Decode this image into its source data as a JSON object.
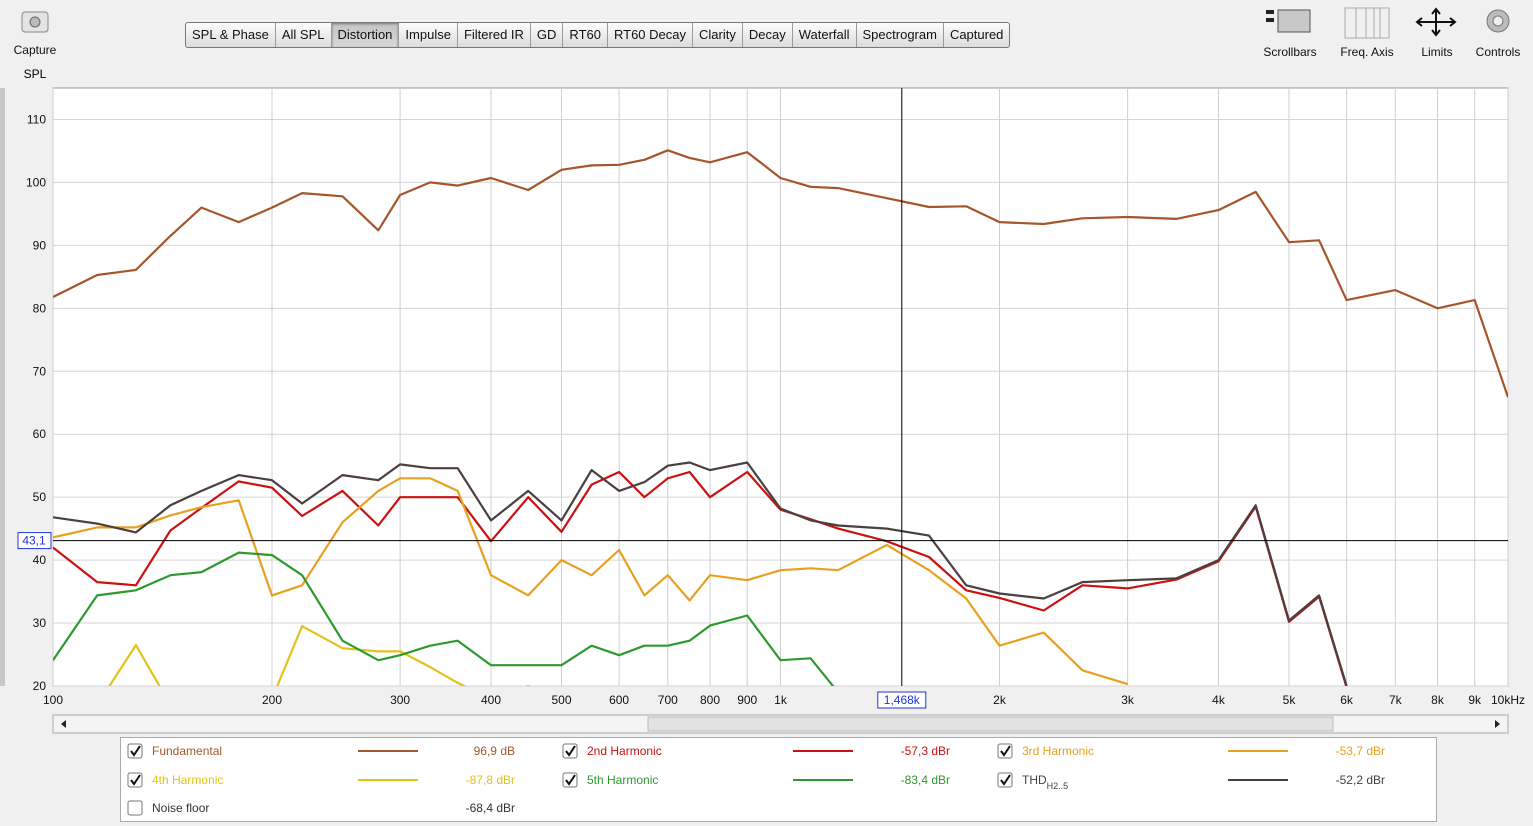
{
  "toolbar": {
    "capture": "Capture",
    "buttons": [
      "SPL & Phase",
      "All SPL",
      "Distortion",
      "Impulse",
      "Filtered IR",
      "GD",
      "RT60",
      "RT60 Decay",
      "Clarity",
      "Decay",
      "Waterfall",
      "Spectrogram",
      "Captured"
    ],
    "active_index": 2,
    "tools": [
      "Scrollbars",
      "Freq. Axis",
      "Limits",
      "Controls"
    ]
  },
  "chart_data": {
    "type": "line",
    "y_label": "SPL",
    "xscale": "log",
    "grid": true,
    "xlim": [
      100,
      10000
    ],
    "ylim": [
      20,
      115
    ],
    "xticks": [
      100,
      200,
      300,
      400,
      500,
      600,
      700,
      800,
      900,
      {
        "value": 1000,
        "label": "1k"
      },
      {
        "value": 2000,
        "label": "2k"
      },
      {
        "value": 3000,
        "label": "3k"
      },
      {
        "value": 4000,
        "label": "4k"
      },
      {
        "value": 5000,
        "label": "5k"
      },
      {
        "value": 6000,
        "label": "6k"
      },
      {
        "value": 7000,
        "label": "7k"
      },
      {
        "value": 8000,
        "label": "8k"
      },
      {
        "value": 9000,
        "label": "9k"
      },
      {
        "value": 10000,
        "label": "10kHz"
      }
    ],
    "yticks": [
      20,
      30,
      40,
      50,
      60,
      70,
      80,
      90,
      100,
      110
    ],
    "cursor": {
      "x": {
        "value": 1468,
        "label": "1,468k"
      },
      "y": {
        "value": 43.1,
        "label": "43,1"
      }
    },
    "x": [
      100,
      115,
      130,
      145,
      160,
      180,
      200,
      220,
      250,
      280,
      300,
      330,
      360,
      400,
      450,
      500,
      550,
      600,
      650,
      700,
      750,
      800,
      900,
      1000,
      1100,
      1200,
      1400,
      1600,
      1800,
      2000,
      2300,
      2600,
      3000,
      3500,
      4000,
      4500,
      5000,
      5500,
      6000,
      7000,
      8000,
      9000,
      10000
    ],
    "series": [
      {
        "name": "Fundamental",
        "color": "#a5562a",
        "checked": true,
        "readout": "96,9 dB",
        "values": [
          81.8,
          85.3,
          86.1,
          91.5,
          96,
          93.7,
          96,
          98.3,
          97.8,
          92.4,
          98,
          100,
          99.5,
          100.7,
          98.8,
          102,
          102.7,
          102.8,
          103.6,
          105.1,
          103.9,
          103.2,
          104.8,
          100.7,
          99.3,
          99.1,
          97.5,
          96.1,
          96.2,
          93.7,
          93.4,
          94.3,
          94.5,
          94.2,
          95.6,
          98.5,
          90.5,
          90.8,
          81.3,
          82.9,
          80,
          81.3,
          65.9
        ]
      },
      {
        "name": "2nd Harmonic",
        "color": "#cc1111",
        "checked": true,
        "readout": "-57,3 dBr",
        "values": [
          42,
          36.5,
          36,
          44.7,
          48.3,
          52.5,
          51.5,
          47,
          51,
          45.5,
          50,
          50,
          50,
          43,
          50,
          44.5,
          52,
          54,
          50,
          53,
          54,
          50,
          54,
          48,
          46.5,
          45,
          43,
          40.5,
          35.2,
          34,
          32,
          36,
          35.5,
          36.9,
          39.8,
          48.5,
          30.2,
          34.2,
          19.8,
          null,
          null,
          null,
          null
        ]
      },
      {
        "name": "3rd Harmonic",
        "color": "#e8a020",
        "checked": true,
        "readout": "-53,7 dBr",
        "values": [
          43.6,
          45.2,
          45.2,
          47.1,
          48.4,
          49.5,
          34.4,
          36,
          46,
          51,
          53,
          53,
          51,
          37.6,
          34.4,
          40,
          37.6,
          41.6,
          34.4,
          37.6,
          33.6,
          37.6,
          36.8,
          38.4,
          38.7,
          38.4,
          42.4,
          38.4,
          33.9,
          26.4,
          28.5,
          22.5,
          20.3,
          null,
          null,
          null,
          null,
          null,
          null,
          null,
          null,
          null,
          null
        ]
      },
      {
        "name": "4th Harmonic",
        "color": "#e3c21a",
        "checked": true,
        "readout": "-87,8 dBr",
        "values": [
          null,
          17,
          26.5,
          17,
          18,
          15,
          18,
          29.5,
          26,
          25.5,
          25.5,
          23,
          20.5,
          18,
          20,
          18,
          null,
          null,
          null,
          null,
          null,
          null,
          null,
          null,
          null,
          null,
          null,
          null,
          null,
          null,
          null,
          null,
          null,
          null,
          null,
          null,
          null,
          null,
          null,
          null,
          null,
          null,
          null
        ]
      },
      {
        "name": "5th Harmonic",
        "color": "#2e9a2e",
        "checked": true,
        "readout": "-83,4 dBr",
        "values": [
          24.1,
          34.4,
          35.2,
          37.6,
          38.1,
          41.2,
          40.8,
          37.6,
          27.2,
          24.1,
          24.9,
          26.4,
          27.2,
          23.3,
          23.3,
          23.3,
          26.4,
          24.9,
          26.4,
          26.4,
          27.2,
          29.6,
          31.2,
          24.1,
          24.4,
          19,
          null,
          null,
          null,
          null,
          null,
          null,
          null,
          null,
          null,
          null,
          null,
          null,
          null,
          null,
          null,
          null,
          null
        ]
      },
      {
        "name": "THD",
        "subscript": "H2..5",
        "color": "#4b3f3f",
        "checked": true,
        "readout": "-52,2 dBr",
        "values": [
          46.8,
          45.8,
          44.4,
          48.7,
          51,
          53.5,
          52.7,
          49,
          53.5,
          52.7,
          55.2,
          54.6,
          54.6,
          46.3,
          51,
          46.3,
          54.3,
          51,
          52.4,
          55,
          55.5,
          54.3,
          55.5,
          48.2,
          46.3,
          45.5,
          45,
          43.9,
          36,
          34.7,
          33.9,
          36.5,
          36.8,
          37.1,
          40,
          48.7,
          30.4,
          34.4,
          20,
          null,
          null,
          null,
          null
        ]
      }
    ],
    "noise_floor": {
      "name": "Noise floor",
      "checked": false,
      "readout": "-68,4 dBr"
    }
  }
}
